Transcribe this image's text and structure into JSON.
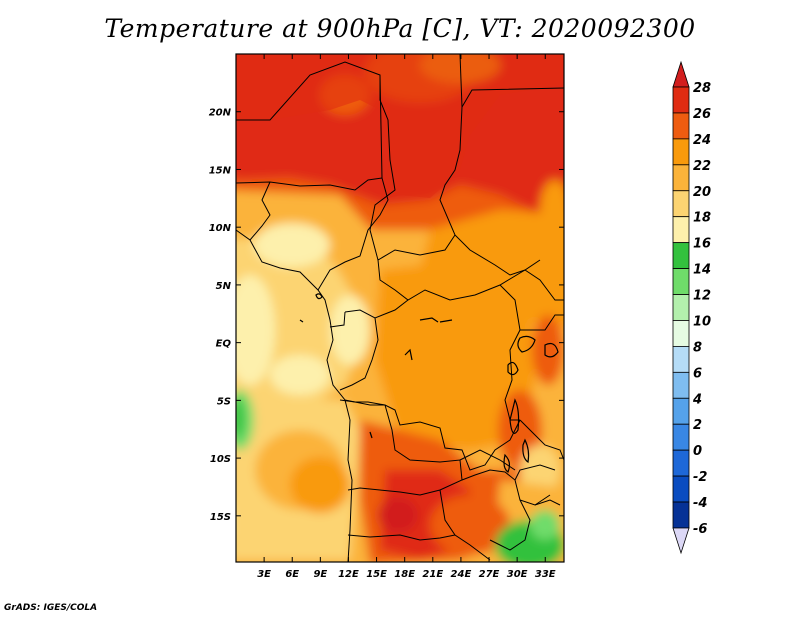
{
  "title": "Temperature at 900hPa [C], VT: 2020092300",
  "credit": "GrADS: IGES/COLA",
  "map": {
    "lon_range": [
      0,
      35
    ],
    "lat_range": [
      -19,
      25
    ],
    "lat_ticks": [
      {
        "label": "20N",
        "lat": 20
      },
      {
        "label": "15N",
        "lat": 15
      },
      {
        "label": "10N",
        "lat": 10
      },
      {
        "label": "5N",
        "lat": 5
      },
      {
        "label": "EQ",
        "lat": 0
      },
      {
        "label": "5S",
        "lat": -5
      },
      {
        "label": "10S",
        "lat": -10
      },
      {
        "label": "15S",
        "lat": -15
      }
    ],
    "lon_ticks": [
      {
        "label": "3E",
        "lon": 3
      },
      {
        "label": "6E",
        "lon": 6
      },
      {
        "label": "9E",
        "lon": 9
      },
      {
        "label": "12E",
        "lon": 12
      },
      {
        "label": "15E",
        "lon": 15
      },
      {
        "label": "18E",
        "lon": 18
      },
      {
        "label": "21E",
        "lon": 21
      },
      {
        "label": "24E",
        "lon": 24
      },
      {
        "label": "27E",
        "lon": 27
      },
      {
        "label": "30E",
        "lon": 30
      },
      {
        "label": "33E",
        "lon": 33
      }
    ]
  },
  "colorbar": {
    "labels": [
      "28",
      "26",
      "24",
      "22",
      "20",
      "18",
      "16",
      "14",
      "12",
      "10",
      "8",
      "6",
      "4",
      "2",
      "0",
      "-2",
      "-4",
      "-6"
    ],
    "colors": {
      "above_28": "#d21e1e",
      "26_28": "#e02c12",
      "24_26": "#ee5c10",
      "22_24": "#f99a0c",
      "20_22": "#fbb33a",
      "18_20": "#fcd472",
      "16_18": "#fdf0ac",
      "14_16": "#33c13e",
      "12_14": "#6fdc6a",
      "10_12": "#b3f0ad",
      "8_10": "#e6fbe3",
      "6_8": "#b5dcf7",
      "4_6": "#7fbdf0",
      "2_4": "#55a2ea",
      "0_2": "#3987e4",
      "m2_0": "#1e68d8",
      "m4_m2": "#0a4cc0",
      "m6_m4": "#063296",
      "below_m6": "#12106e",
      "below_triangle": "#dcd8f6"
    }
  }
}
